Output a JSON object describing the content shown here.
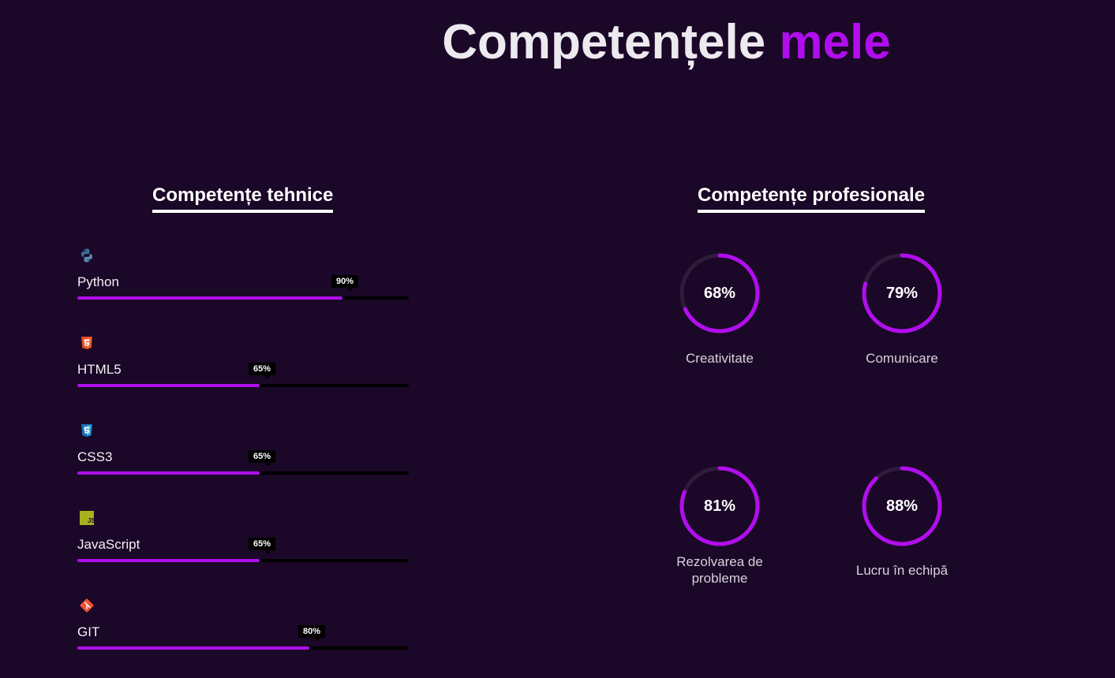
{
  "page_title": {
    "main": "Competențele",
    "accent": "mele"
  },
  "colors": {
    "background": "#1b0727",
    "accent": "#b10eee",
    "track": "#000000",
    "ring_track": "#2f1b3c"
  },
  "technical": {
    "heading": "Competențe tehnice",
    "skills": [
      {
        "name": "Python",
        "percent_label": "90%",
        "value": 90,
        "icon": "python-icon"
      },
      {
        "name": "HTML5",
        "percent_label": "65%",
        "value": 65,
        "icon": "html5-icon"
      },
      {
        "name": "CSS3",
        "percent_label": "65%",
        "value": 65,
        "icon": "css3-icon"
      },
      {
        "name": "JavaScript",
        "percent_label": "65%",
        "value": 65,
        "icon": "javascript-icon"
      },
      {
        "name": "GIT",
        "percent_label": "80%",
        "value": 80,
        "icon": "git-icon"
      }
    ]
  },
  "professional": {
    "heading": "Competențe profesionale",
    "skills": [
      {
        "name": "Creativitate",
        "percent_label": "68%",
        "value": 68
      },
      {
        "name": "Comunicare",
        "percent_label": "79%",
        "value": 79
      },
      {
        "name": "Rezolvarea de probleme",
        "percent_label": "81%",
        "value": 81
      },
      {
        "name": "Lucru în echipă",
        "percent_label": "88%",
        "value": 88
      }
    ]
  }
}
